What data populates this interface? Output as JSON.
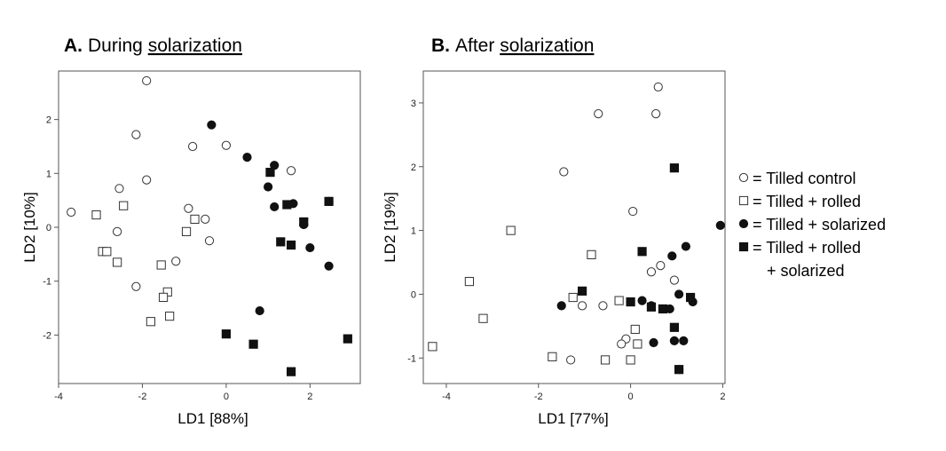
{
  "chart_data": [
    {
      "type": "scatter",
      "title_letter": "A.",
      "title_pre": "During ",
      "title_word": "solarization",
      "xlabel": "LD1 [88%]",
      "ylabel": "LD2 [10%]",
      "xlim": [
        -4,
        3.2
      ],
      "ylim": [
        -2.9,
        2.9
      ],
      "xticks": [
        -4,
        -2,
        0,
        2
      ],
      "yticks": [
        -2,
        -1,
        0,
        1,
        2
      ],
      "series": [
        {
          "marker": "open-circle",
          "points": [
            [
              -1.9,
              2.72
            ],
            [
              -2.15,
              1.72
            ],
            [
              -0.8,
              1.5
            ],
            [
              0,
              1.52
            ],
            [
              1.55,
              1.05
            ],
            [
              -1.9,
              0.88
            ],
            [
              -2.55,
              0.72
            ],
            [
              -3.7,
              0.28
            ],
            [
              -0.9,
              0.35
            ],
            [
              -0.5,
              0.15
            ],
            [
              -2.6,
              -0.08
            ],
            [
              -0.4,
              -0.25
            ],
            [
              -1.2,
              -0.63
            ],
            [
              -2.15,
              -1.1
            ]
          ]
        },
        {
          "marker": "open-square",
          "points": [
            [
              -3.1,
              0.23
            ],
            [
              -2.45,
              0.4
            ],
            [
              -0.75,
              0.15
            ],
            [
              -0.95,
              -0.08
            ],
            [
              -2.95,
              -0.45
            ],
            [
              -2.85,
              -0.45
            ],
            [
              -2.6,
              -0.65
            ],
            [
              -1.55,
              -0.7
            ],
            [
              -1.4,
              -1.2
            ],
            [
              -1.5,
              -1.3
            ],
            [
              -1.35,
              -1.65
            ],
            [
              -1.8,
              -1.75
            ]
          ]
        },
        {
          "marker": "filled-circle",
          "points": [
            [
              -0.35,
              1.9
            ],
            [
              0.5,
              1.3
            ],
            [
              1.15,
              1.15
            ],
            [
              1.0,
              0.75
            ],
            [
              1.15,
              0.38
            ],
            [
              1.6,
              0.44
            ],
            [
              1.85,
              0.05
            ],
            [
              2.45,
              0.48
            ],
            [
              2.0,
              -0.38
            ],
            [
              2.45,
              -0.72
            ],
            [
              0.8,
              -1.55
            ]
          ]
        },
        {
          "marker": "filled-square",
          "points": [
            [
              1.05,
              1.02
            ],
            [
              1.45,
              0.42
            ],
            [
              1.85,
              0.1
            ],
            [
              2.45,
              0.48
            ],
            [
              1.3,
              -0.27
            ],
            [
              1.55,
              -0.33
            ],
            [
              0,
              -1.98
            ],
            [
              0.65,
              -2.17
            ],
            [
              1.55,
              -2.68
            ],
            [
              2.9,
              -2.07
            ]
          ]
        }
      ]
    },
    {
      "type": "scatter",
      "title_letter": "B.",
      "title_pre": "After ",
      "title_word": "solarization",
      "xlabel": "LD1 [77%]",
      "ylabel": "LD2 [19%]",
      "xlim": [
        -4.5,
        2.05
      ],
      "ylim": [
        -1.4,
        3.5
      ],
      "xticks": [
        -4,
        -2,
        0,
        2
      ],
      "yticks": [
        -1,
        0,
        1,
        2,
        3
      ],
      "series": [
        {
          "marker": "open-circle",
          "points": [
            [
              0.6,
              3.25
            ],
            [
              -0.7,
              2.83
            ],
            [
              0.55,
              2.83
            ],
            [
              -1.45,
              1.92
            ],
            [
              0.05,
              1.3
            ],
            [
              0.65,
              0.45
            ],
            [
              0.45,
              0.35
            ],
            [
              0.95,
              0.22
            ],
            [
              -1.05,
              -0.18
            ],
            [
              -0.6,
              -0.18
            ],
            [
              -0.1,
              -0.7
            ],
            [
              -0.2,
              -0.78
            ],
            [
              -1.3,
              -1.03
            ]
          ]
        },
        {
          "marker": "open-square",
          "points": [
            [
              -2.6,
              1.0
            ],
            [
              -3.5,
              0.2
            ],
            [
              -0.85,
              0.62
            ],
            [
              -1.25,
              -0.05
            ],
            [
              -0.25,
              -0.1
            ],
            [
              -3.2,
              -0.38
            ],
            [
              0.1,
              -0.55
            ],
            [
              0.15,
              -0.78
            ],
            [
              -4.3,
              -0.82
            ],
            [
              -1.7,
              -0.98
            ],
            [
              -0.55,
              -1.03
            ],
            [
              0,
              -1.03
            ]
          ]
        },
        {
          "marker": "filled-circle",
          "points": [
            [
              1.95,
              1.08
            ],
            [
              1.2,
              0.75
            ],
            [
              0.9,
              0.6
            ],
            [
              -1.5,
              -0.18
            ],
            [
              0.25,
              -0.1
            ],
            [
              0.45,
              -0.18
            ],
            [
              0.85,
              -0.23
            ],
            [
              1.05,
              0
            ],
            [
              1.35,
              -0.12
            ],
            [
              0.95,
              -0.73
            ],
            [
              1.15,
              -0.73
            ],
            [
              0.5,
              -0.76
            ],
            [
              1.05,
              -1.18
            ]
          ]
        },
        {
          "marker": "filled-square",
          "points": [
            [
              0.95,
              1.98
            ],
            [
              0.25,
              0.67
            ],
            [
              -1.05,
              0.05
            ],
            [
              0,
              -0.12
            ],
            [
              0.45,
              -0.2
            ],
            [
              0.7,
              -0.23
            ],
            [
              1.3,
              -0.05
            ],
            [
              0.95,
              -0.52
            ],
            [
              1.05,
              -1.18
            ]
          ]
        }
      ]
    }
  ],
  "legend": [
    {
      "marker": "open-circle",
      "lines": [
        "= Tilled control"
      ]
    },
    {
      "marker": "open-square",
      "lines": [
        "= Tilled + rolled"
      ]
    },
    {
      "marker": "filled-circle",
      "lines": [
        "= Tilled + solarized"
      ]
    },
    {
      "marker": "filled-square",
      "lines": [
        "= Tilled + rolled",
        "+ solarized"
      ]
    }
  ]
}
